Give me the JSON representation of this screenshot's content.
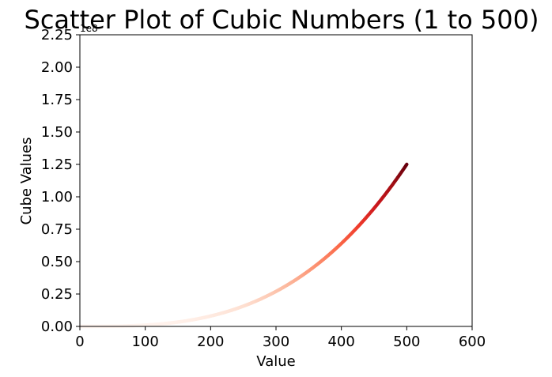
{
  "chart_data": {
    "type": "scatter",
    "title": "Scatter Plot of Cubic Numbers (1 to 500)",
    "xlabel": "Value",
    "ylabel": "Cube Values",
    "xlim": [
      0,
      600
    ],
    "ylim": [
      0,
      225000000
    ],
    "x_ticks": [
      0,
      100,
      200,
      300,
      400,
      500,
      600
    ],
    "x_tick_labels": [
      "0",
      "100",
      "200",
      "300",
      "400",
      "500",
      "600"
    ],
    "y_ticks": [
      0,
      25000000,
      50000000,
      75000000,
      100000000,
      125000000,
      150000000,
      175000000,
      200000000,
      225000000
    ],
    "y_tick_labels": [
      "0.00",
      "0.25",
      "0.50",
      "0.75",
      "1.00",
      "1.25",
      "1.50",
      "1.75",
      "2.00",
      "2.25"
    ],
    "y_offset_label": "1e8",
    "grid": false,
    "colormap": "Reds",
    "color_by": "y",
    "series": [
      {
        "x_range": [
          1,
          500
        ],
        "formula": "y = x^3"
      }
    ]
  }
}
